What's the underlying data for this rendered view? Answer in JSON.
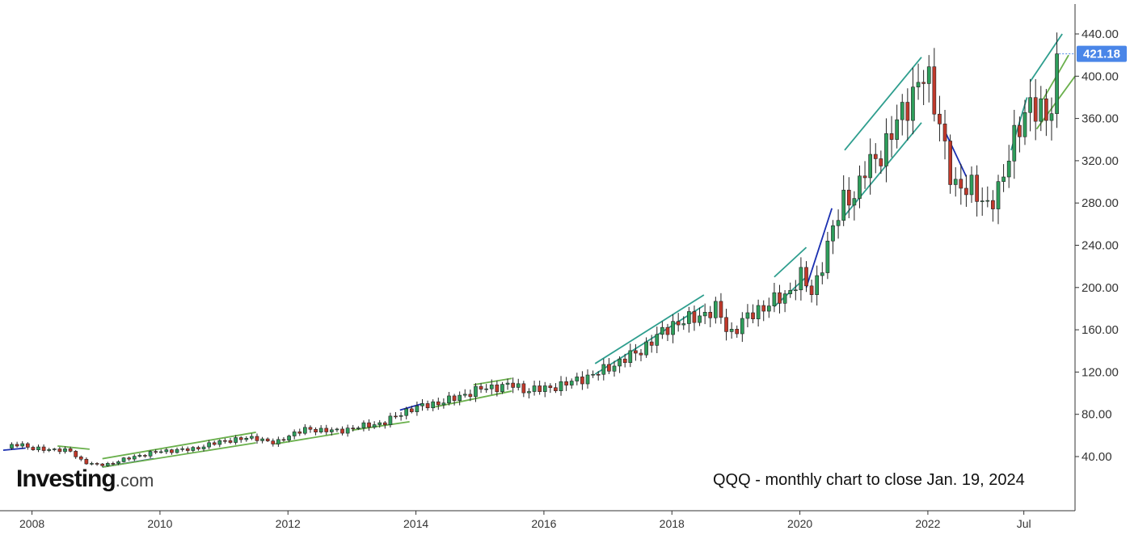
{
  "chart_data": {
    "type": "candlestick",
    "title": "QQQ - monthly chart to close Jan. 19, 2024",
    "watermark": "Investing.com",
    "y_ticks": [
      "40.00",
      "80.00",
      "120.00",
      "160.00",
      "200.00",
      "240.00",
      "280.00",
      "320.00",
      "360.00",
      "400.00",
      "440.00"
    ],
    "ylim": [
      10,
      460
    ],
    "x_ticks": [
      {
        "label": "2008",
        "t": 2008.0
      },
      {
        "label": "2010",
        "t": 2010.0
      },
      {
        "label": "2012",
        "t": 2012.0
      },
      {
        "label": "2014",
        "t": 2014.0
      },
      {
        "label": "2016",
        "t": 2016.0
      },
      {
        "label": "2018",
        "t": 2018.0
      },
      {
        "label": "2020",
        "t": 2020.0
      },
      {
        "label": "2022",
        "t": 2022.0
      },
      {
        "label": "Jul",
        "t": 2023.5
      }
    ],
    "xlim": [
      2007.5,
      2024.3
    ],
    "last_price": 421.18,
    "last_price_label": "421.18",
    "colors": {
      "up": "#2e9e5b",
      "down": "#c0392b",
      "price_tag": "#4a86e8",
      "trend": "#2e9e8e",
      "trend_green": "#6ab04c",
      "trend_blue": "#1a2fb0"
    },
    "anchors": [
      [
        2007.6,
        48
      ],
      [
        2007.8,
        53
      ],
      [
        2008.0,
        47
      ],
      [
        2008.3,
        47
      ],
      [
        2008.6,
        45
      ],
      [
        2008.8,
        35
      ],
      [
        2009.0,
        32
      ],
      [
        2009.2,
        33
      ],
      [
        2009.6,
        40
      ],
      [
        2010.0,
        45
      ],
      [
        2010.5,
        47
      ],
      [
        2011.0,
        55
      ],
      [
        2011.5,
        58
      ],
      [
        2011.8,
        52
      ],
      [
        2012.0,
        60
      ],
      [
        2012.3,
        66
      ],
      [
        2012.8,
        64
      ],
      [
        2013.0,
        67
      ],
      [
        2013.5,
        72
      ],
      [
        2013.9,
        85
      ],
      [
        2014.5,
        93
      ],
      [
        2015.0,
        104
      ],
      [
        2015.5,
        108
      ],
      [
        2015.7,
        103
      ],
      [
        2016.0,
        104
      ],
      [
        2016.3,
        108
      ],
      [
        2016.8,
        118
      ],
      [
        2017.0,
        124
      ],
      [
        2017.5,
        140
      ],
      [
        2018.0,
        165
      ],
      [
        2018.3,
        170
      ],
      [
        2018.7,
        180
      ],
      [
        2018.9,
        155
      ],
      [
        2019.1,
        168
      ],
      [
        2019.5,
        185
      ],
      [
        2019.8,
        192
      ],
      [
        2020.0,
        213
      ],
      [
        2020.2,
        192
      ],
      [
        2020.4,
        235
      ],
      [
        2020.7,
        285
      ],
      [
        2020.9,
        290
      ],
      [
        2021.0,
        310
      ],
      [
        2021.3,
        330
      ],
      [
        2021.6,
        365
      ],
      [
        2021.9,
        400
      ],
      [
        2022.0,
        395
      ],
      [
        2022.2,
        355
      ],
      [
        2022.4,
        290
      ],
      [
        2022.7,
        300
      ],
      [
        2022.9,
        270
      ],
      [
        2023.1,
        295
      ],
      [
        2023.3,
        330
      ],
      [
        2023.6,
        378
      ],
      [
        2023.75,
        365
      ],
      [
        2023.9,
        355
      ],
      [
        2024.0,
        400
      ],
      [
        2024.05,
        421.18
      ]
    ],
    "trendlines": [
      {
        "color": "trend_blue",
        "points": [
          [
            2007.55,
            46
          ],
          [
            2007.9,
            48
          ]
        ]
      },
      {
        "color": "trend_green",
        "points": [
          [
            2008.4,
            50
          ],
          [
            2008.9,
            47
          ]
        ]
      },
      {
        "color": "trend_blue",
        "points": [
          [
            2009.1,
            30
          ],
          [
            2009.9,
            38
          ]
        ]
      },
      {
        "color": "trend_green",
        "points": [
          [
            2009.1,
            30
          ],
          [
            2011.5,
            53
          ]
        ]
      },
      {
        "color": "trend_green",
        "points": [
          [
            2009.1,
            38
          ],
          [
            2011.5,
            63
          ]
        ]
      },
      {
        "color": "trend_green",
        "points": [
          [
            2011.8,
            52
          ],
          [
            2012.8,
            62
          ]
        ]
      },
      {
        "color": "trend_green",
        "points": [
          [
            2013.0,
            65
          ],
          [
            2013.9,
            73
          ]
        ]
      },
      {
        "color": "trend_blue",
        "points": [
          [
            2013.75,
            84
          ],
          [
            2014.1,
            90
          ]
        ]
      },
      {
        "color": "trend_green",
        "points": [
          [
            2014.3,
            87
          ],
          [
            2015.5,
            102
          ]
        ]
      },
      {
        "color": "trend_green",
        "points": [
          [
            2014.9,
            108
          ],
          [
            2015.5,
            114
          ]
        ]
      },
      {
        "color": "trend_trend",
        "points": [
          [
            2016.8,
            128
          ],
          [
            2018.5,
            193
          ]
        ]
      },
      {
        "color": "trend_trend",
        "points": [
          [
            2016.8,
            118
          ],
          [
            2018.5,
            183
          ]
        ]
      },
      {
        "color": "trend_trend",
        "points": [
          [
            2019.6,
            210
          ],
          [
            2020.1,
            238
          ]
        ]
      },
      {
        "color": "trend_trend",
        "points": [
          [
            2019.6,
            182
          ],
          [
            2020.1,
            210
          ]
        ]
      },
      {
        "color": "trend_blue",
        "points": [
          [
            2020.1,
            200
          ],
          [
            2020.5,
            275
          ]
        ]
      },
      {
        "color": "trend_trend",
        "points": [
          [
            2020.7,
            330
          ],
          [
            2021.9,
            418
          ]
        ]
      },
      {
        "color": "trend_trend",
        "points": [
          [
            2020.7,
            268
          ],
          [
            2021.9,
            356
          ]
        ]
      },
      {
        "color": "trend_blue",
        "points": [
          [
            2022.25,
            350
          ],
          [
            2022.6,
            305
          ]
        ]
      },
      {
        "color": "trend_trend",
        "points": [
          [
            2023.3,
            330
          ],
          [
            2023.55,
            380
          ]
        ]
      },
      {
        "color": "trend_trend",
        "points": [
          [
            2023.6,
            395
          ],
          [
            2024.1,
            440
          ]
        ]
      },
      {
        "color": "trend_green",
        "points": [
          [
            2023.7,
            350
          ],
          [
            2024.3,
            400
          ]
        ]
      },
      {
        "color": "trend_green",
        "points": [
          [
            2023.8,
            378
          ],
          [
            2024.2,
            420
          ]
        ]
      }
    ]
  }
}
